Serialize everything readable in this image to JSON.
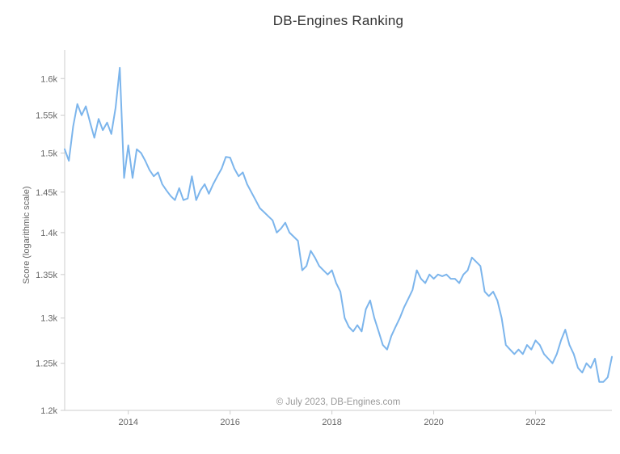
{
  "chart": {
    "title": "DB-Engines Ranking",
    "y_axis_title": "Score (logarithmic scale)",
    "watermark": "© July 2023, DB-Engines.com"
  },
  "chart_data": {
    "type": "line",
    "title": "DB-Engines Ranking",
    "xlabel": "",
    "ylabel": "Score (logarithmic scale)",
    "y_scale": "log",
    "grid": false,
    "legend": "none",
    "line_color": "#7cb5ec",
    "axis_color": "#cccccc",
    "ylim": [
      1200,
      1640
    ],
    "x_start": 2012.75,
    "x_step": 0.0833333,
    "x_ticks": [
      {
        "value": 2014,
        "label": "2014"
      },
      {
        "value": 2016,
        "label": "2016"
      },
      {
        "value": 2018,
        "label": "2018"
      },
      {
        "value": 2020,
        "label": "2020"
      },
      {
        "value": 2022,
        "label": "2022"
      }
    ],
    "y_ticks": [
      {
        "value": 1600,
        "label": "1.6k"
      },
      {
        "value": 1550,
        "label": "1.55k"
      },
      {
        "value": 1500,
        "label": "1.5k"
      },
      {
        "value": 1450,
        "label": "1.45k"
      },
      {
        "value": 1400,
        "label": "1.4k"
      },
      {
        "value": 1350,
        "label": "1.35k"
      },
      {
        "value": 1300,
        "label": "1.3k"
      },
      {
        "value": 1250,
        "label": "1.25k"
      },
      {
        "value": 1200,
        "label": "1.2k"
      }
    ],
    "series": [
      {
        "name": "Score",
        "unit": "points",
        "values": [
          1505,
          1490,
          1535,
          1565,
          1550,
          1562,
          1540,
          1520,
          1545,
          1530,
          1540,
          1525,
          1560,
          1615,
          1468,
          1510,
          1468,
          1505,
          1500,
          1490,
          1478,
          1470,
          1475,
          1460,
          1452,
          1445,
          1440,
          1455,
          1440,
          1442,
          1470,
          1440,
          1452,
          1460,
          1448,
          1460,
          1470,
          1480,
          1495,
          1494,
          1480,
          1470,
          1475,
          1460,
          1450,
          1440,
          1430,
          1425,
          1420,
          1415,
          1400,
          1405,
          1412,
          1400,
          1395,
          1390,
          1355,
          1360,
          1378,
          1370,
          1360,
          1355,
          1350,
          1355,
          1340,
          1330,
          1300,
          1290,
          1285,
          1292,
          1285,
          1310,
          1320,
          1300,
          1285,
          1270,
          1265,
          1280,
          1290,
          1300,
          1312,
          1322,
          1332,
          1355,
          1345,
          1340,
          1350,
          1345,
          1350,
          1348,
          1350,
          1345,
          1345,
          1340,
          1350,
          1355,
          1370,
          1365,
          1360,
          1330,
          1325,
          1330,
          1320,
          1300,
          1270,
          1265,
          1260,
          1265,
          1260,
          1270,
          1265,
          1275,
          1270,
          1260,
          1255,
          1250,
          1260,
          1275,
          1287,
          1270,
          1260,
          1245,
          1240,
          1250,
          1245,
          1255,
          1230,
          1230,
          1235,
          1257
        ]
      }
    ]
  }
}
